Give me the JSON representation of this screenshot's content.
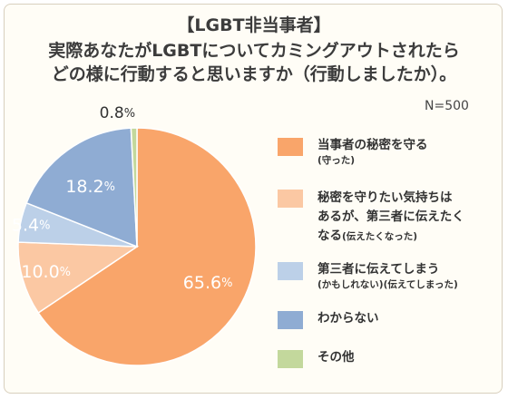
{
  "title_lines": [
    "【LGBT非当事者】",
    "実際あなたがLGBTについてカミングアウトされたら",
    "どの様に行動すると思いますか（行動しましたか）。"
  ],
  "sample_note": "N=500",
  "chart_data": {
    "type": "pie",
    "title": "【LGBT非当事者】実際あなたがLGBTについてカミングアウトされたらどの様に行動すると思いますか（行動しましたか）。",
    "unit": "%",
    "slices": [
      {
        "label": "当事者の秘密を守る（守った）",
        "value": 65.6,
        "value_text": "65.6",
        "color": "#f9a56a"
      },
      {
        "label": "秘密を守りたい気持ちはあるが、第三者に伝えたくなる(伝えたくなった)",
        "value": 10.0,
        "value_text": "10.0",
        "color": "#fbc8a3"
      },
      {
        "label": "第三者に伝えてしまう(かもしれない)(伝えてしまった)",
        "value": 5.4,
        "value_text": "5.4",
        "color": "#bcd0e8"
      },
      {
        "label": "わからない",
        "value": 18.2,
        "value_text": "18.2",
        "color": "#8facd3"
      },
      {
        "label": "その他",
        "value": 0.8,
        "value_text": "0.8",
        "color": "#c3d89c"
      }
    ]
  },
  "legend": [
    {
      "main": "当事者の秘密を守る",
      "sub": "(守った)"
    },
    {
      "main": "秘密を守りたい気持ちは\nあるが、第三者に伝えたく\nなる",
      "sub": "(伝えたくなった)"
    },
    {
      "main": "第三者に伝えてしまう",
      "sub": "(かもしれない)(伝えてしまった)"
    },
    {
      "main": "わからない",
      "sub": ""
    },
    {
      "main": "その他",
      "sub": ""
    }
  ]
}
